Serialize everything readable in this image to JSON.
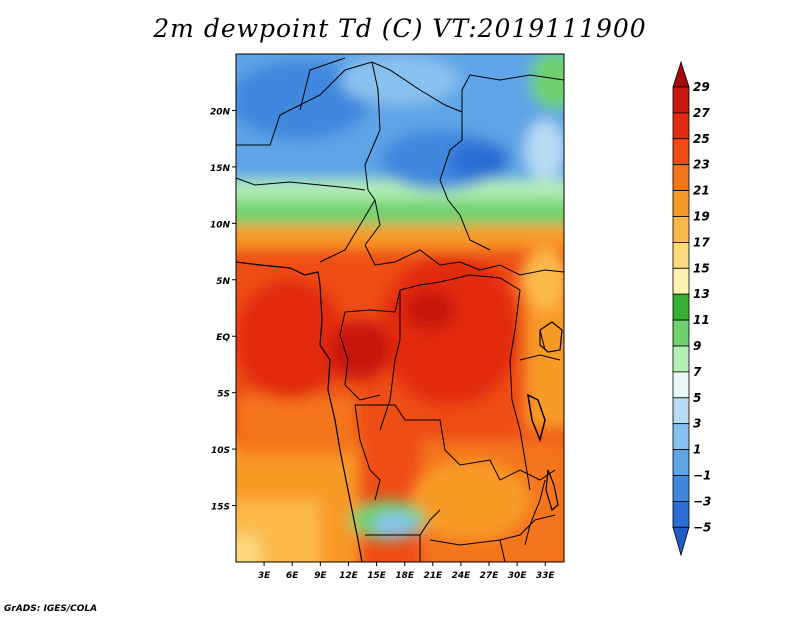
{
  "title": "2m dewpoint Td (C) VT:2019111900",
  "credit": "GrADS: IGES/COLA",
  "map": {
    "lon_range": [
      0,
      35
    ],
    "lat_range": [
      -20,
      25
    ],
    "lat_labels": [
      "20N",
      "15N",
      "10N",
      "5N",
      "EQ",
      "5S",
      "10S",
      "15S"
    ],
    "lat_values": [
      20,
      15,
      10,
      5,
      0,
      -5,
      -10,
      -15
    ],
    "lon_labels": [
      "3E",
      "6E",
      "9E",
      "12E",
      "15E",
      "18E",
      "21E",
      "24E",
      "27E",
      "30E",
      "33E"
    ],
    "lon_values": [
      3,
      6,
      9,
      12,
      15,
      18,
      21,
      24,
      27,
      30,
      33
    ]
  },
  "colorbar": {
    "labels": [
      "29",
      "27",
      "25",
      "23",
      "21",
      "19",
      "17",
      "15",
      "13",
      "11",
      "9",
      "7",
      "5",
      "3",
      "1",
      "−1",
      "−3",
      "−5"
    ],
    "colors": [
      "#a50a0a",
      "#c8170d",
      "#e22a10",
      "#ee4d16",
      "#f4751c",
      "#f89a26",
      "#fbb94a",
      "#fcd87e",
      "#fdf3b0",
      "#33b233",
      "#6fd16f",
      "#b3eeb3",
      "#e8f8f8",
      "#b8dcf5",
      "#89c1ee",
      "#5fa4e6",
      "#3f88de",
      "#2a6ed3",
      "#1f5cc6"
    ],
    "colors_order": "top-to-bottom (triangle, 18 boxes)"
  }
}
